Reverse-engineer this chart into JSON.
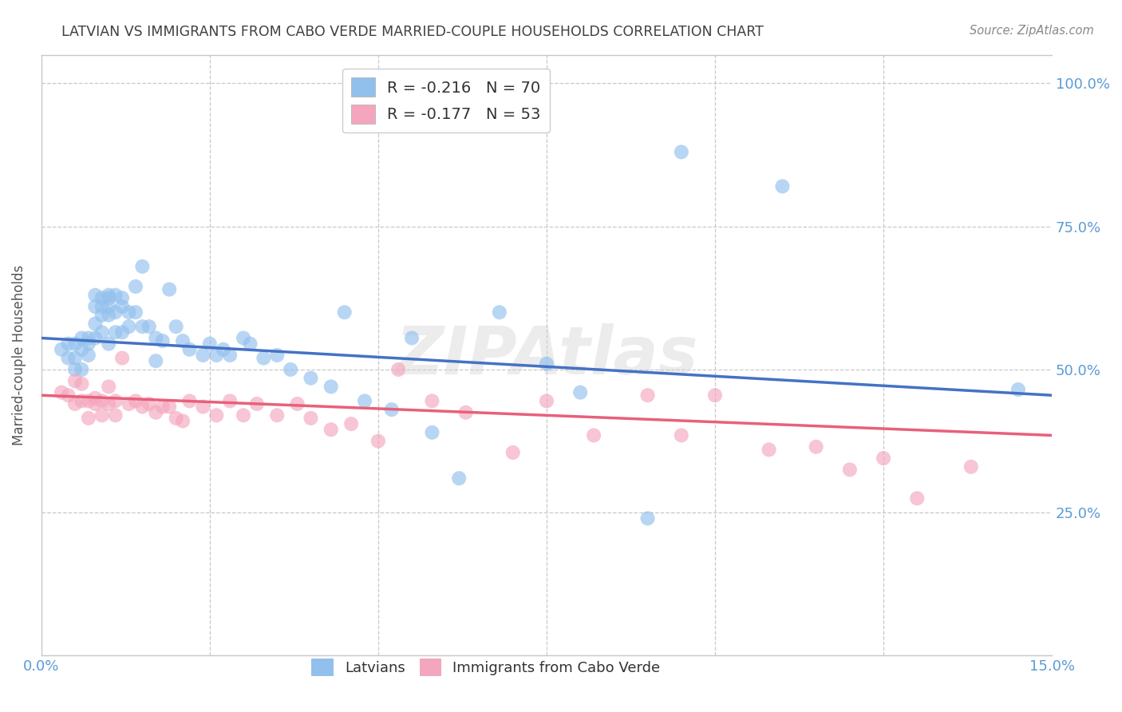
{
  "title": "LATVIAN VS IMMIGRANTS FROM CABO VERDE MARRIED-COUPLE HOUSEHOLDS CORRELATION CHART",
  "source": "Source: ZipAtlas.com",
  "ylabel": "Married-couple Households",
  "xlabel": "",
  "xlim": [
    0.0,
    0.15
  ],
  "ylim": [
    0.0,
    1.05
  ],
  "yticks": [
    0.0,
    0.25,
    0.5,
    0.75,
    1.0
  ],
  "ytick_labels": [
    "",
    "25.0%",
    "50.0%",
    "75.0%",
    "100.0%"
  ],
  "xticks": [
    0.0,
    0.025,
    0.05,
    0.075,
    0.1,
    0.125,
    0.15
  ],
  "xtick_labels": [
    "0.0%",
    "",
    "",
    "",
    "",
    "",
    "15.0%"
  ],
  "background_color": "#ffffff",
  "grid_color": "#c8c8c8",
  "watermark": "ZIPAtlas",
  "blue_color": "#92C0ED",
  "pink_color": "#F4A6BE",
  "blue_line_color": "#4472C4",
  "pink_line_color": "#E8607A",
  "blue_R": "-0.216",
  "blue_N": "70",
  "pink_R": "-0.177",
  "pink_N": "53",
  "legend_label_blue": "Latvians",
  "legend_label_pink": "Immigrants from Cabo Verde",
  "axis_label_color": "#5B9BD5",
  "title_color": "#404040",
  "blue_line_x0": 0.0,
  "blue_line_y0": 0.555,
  "blue_line_x1": 0.15,
  "blue_line_y1": 0.455,
  "pink_line_x0": 0.0,
  "pink_line_y0": 0.455,
  "pink_line_x1": 0.15,
  "pink_line_y1": 0.385,
  "latvian_x": [
    0.003,
    0.004,
    0.004,
    0.005,
    0.005,
    0.005,
    0.006,
    0.006,
    0.006,
    0.007,
    0.007,
    0.007,
    0.008,
    0.008,
    0.008,
    0.008,
    0.009,
    0.009,
    0.009,
    0.009,
    0.01,
    0.01,
    0.01,
    0.01,
    0.01,
    0.011,
    0.011,
    0.011,
    0.012,
    0.012,
    0.012,
    0.013,
    0.013,
    0.014,
    0.014,
    0.015,
    0.015,
    0.016,
    0.017,
    0.017,
    0.018,
    0.019,
    0.02,
    0.021,
    0.022,
    0.024,
    0.025,
    0.026,
    0.027,
    0.028,
    0.03,
    0.031,
    0.033,
    0.035,
    0.037,
    0.04,
    0.043,
    0.045,
    0.048,
    0.052,
    0.055,
    0.058,
    0.062,
    0.068,
    0.075,
    0.08,
    0.09,
    0.095,
    0.11,
    0.145
  ],
  "latvian_y": [
    0.535,
    0.545,
    0.52,
    0.545,
    0.52,
    0.5,
    0.555,
    0.535,
    0.5,
    0.555,
    0.545,
    0.525,
    0.63,
    0.61,
    0.58,
    0.555,
    0.625,
    0.61,
    0.595,
    0.565,
    0.63,
    0.625,
    0.61,
    0.595,
    0.545,
    0.63,
    0.6,
    0.565,
    0.625,
    0.61,
    0.565,
    0.6,
    0.575,
    0.645,
    0.6,
    0.575,
    0.68,
    0.575,
    0.555,
    0.515,
    0.55,
    0.64,
    0.575,
    0.55,
    0.535,
    0.525,
    0.545,
    0.525,
    0.535,
    0.525,
    0.555,
    0.545,
    0.52,
    0.525,
    0.5,
    0.485,
    0.47,
    0.6,
    0.445,
    0.43,
    0.555,
    0.39,
    0.31,
    0.6,
    0.51,
    0.46,
    0.24,
    0.88,
    0.82,
    0.465
  ],
  "caboverde_x": [
    0.003,
    0.004,
    0.005,
    0.005,
    0.006,
    0.006,
    0.007,
    0.007,
    0.008,
    0.008,
    0.009,
    0.009,
    0.01,
    0.01,
    0.011,
    0.011,
    0.012,
    0.013,
    0.014,
    0.015,
    0.016,
    0.017,
    0.018,
    0.019,
    0.02,
    0.021,
    0.022,
    0.024,
    0.026,
    0.028,
    0.03,
    0.032,
    0.035,
    0.038,
    0.04,
    0.043,
    0.046,
    0.05,
    0.053,
    0.058,
    0.063,
    0.07,
    0.075,
    0.082,
    0.09,
    0.095,
    0.1,
    0.108,
    0.115,
    0.12,
    0.125,
    0.13,
    0.138
  ],
  "caboverde_y": [
    0.46,
    0.455,
    0.48,
    0.44,
    0.475,
    0.445,
    0.445,
    0.415,
    0.45,
    0.44,
    0.445,
    0.42,
    0.47,
    0.44,
    0.445,
    0.42,
    0.52,
    0.44,
    0.445,
    0.435,
    0.44,
    0.425,
    0.435,
    0.435,
    0.415,
    0.41,
    0.445,
    0.435,
    0.42,
    0.445,
    0.42,
    0.44,
    0.42,
    0.44,
    0.415,
    0.395,
    0.405,
    0.375,
    0.5,
    0.445,
    0.425,
    0.355,
    0.445,
    0.385,
    0.455,
    0.385,
    0.455,
    0.36,
    0.365,
    0.325,
    0.345,
    0.275,
    0.33
  ]
}
